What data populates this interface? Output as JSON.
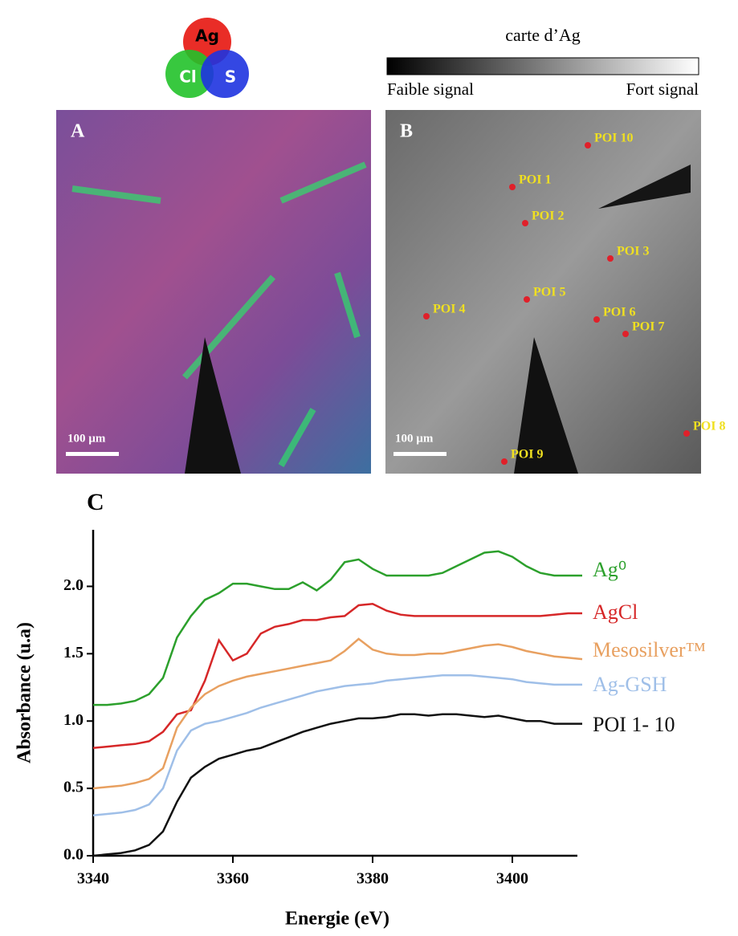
{
  "figure": {
    "rgb_legend": [
      "Ag",
      "Cl",
      "S"
    ],
    "map_title": "carte d’Ag",
    "scale_low": "Faible signal",
    "scale_high": "Fort signal",
    "panel_a": "A",
    "panel_b": "B",
    "scalebar_a": "100 µm",
    "scalebar_b": "100 µm",
    "poi": [
      "POI 1",
      "POI 2",
      "POI 3",
      "POI 4",
      "POI 5",
      "POI 6",
      "POI 7",
      "POI 8",
      "POI 9",
      "POI 10"
    ]
  },
  "chart_data": {
    "type": "line",
    "panel": "C",
    "x_label": "Energie (eV)",
    "y_label": "Absorbance (u.a)",
    "xlim": [
      3340,
      3410
    ],
    "ylim": [
      0,
      2.42
    ],
    "xticks": [
      3340,
      3360,
      3380,
      3400
    ],
    "yticks": [
      {
        "value": 0,
        "label": "0.0"
      },
      0.5,
      {
        "value": 1,
        "label": "1.0"
      },
      1.5,
      {
        "value": 2,
        "label": "2.0"
      }
    ],
    "x": [
      3340,
      3342,
      3344,
      3346,
      3348,
      3350,
      3352,
      3354,
      3356,
      3358,
      3360,
      3362,
      3364,
      3366,
      3368,
      3370,
      3372,
      3374,
      3376,
      3378,
      3380,
      3382,
      3384,
      3386,
      3388,
      3390,
      3392,
      3394,
      3396,
      3398,
      3400,
      3402,
      3404,
      3406,
      3408,
      3410
    ],
    "series": [
      {
        "name": "Ag⁰",
        "color": "#2ca02c",
        "values": [
          1.12,
          1.12,
          1.13,
          1.15,
          1.2,
          1.32,
          1.62,
          1.78,
          1.9,
          1.95,
          2.02,
          2.02,
          2.0,
          1.98,
          1.98,
          2.03,
          1.97,
          2.05,
          2.18,
          2.2,
          2.13,
          2.08,
          2.08,
          2.08,
          2.08,
          2.1,
          2.15,
          2.2,
          2.25,
          2.26,
          2.22,
          2.15,
          2.1,
          2.08,
          2.08,
          2.08
        ]
      },
      {
        "name": "AgCl",
        "color": "#d62728",
        "values": [
          0.8,
          0.81,
          0.82,
          0.83,
          0.85,
          0.92,
          1.05,
          1.08,
          1.3,
          1.6,
          1.45,
          1.5,
          1.65,
          1.7,
          1.72,
          1.75,
          1.75,
          1.77,
          1.78,
          1.86,
          1.87,
          1.82,
          1.79,
          1.78,
          1.78,
          1.78,
          1.78,
          1.78,
          1.78,
          1.78,
          1.78,
          1.78,
          1.78,
          1.79,
          1.8,
          1.8
        ]
      },
      {
        "name": "Mesosilver™",
        "color": "#e8a060",
        "values": [
          0.5,
          0.51,
          0.52,
          0.54,
          0.57,
          0.65,
          0.95,
          1.1,
          1.2,
          1.26,
          1.3,
          1.33,
          1.35,
          1.37,
          1.39,
          1.41,
          1.43,
          1.45,
          1.52,
          1.61,
          1.53,
          1.5,
          1.49,
          1.49,
          1.5,
          1.5,
          1.52,
          1.54,
          1.56,
          1.57,
          1.55,
          1.52,
          1.5,
          1.48,
          1.47,
          1.46
        ]
      },
      {
        "name": "Ag-GSH",
        "color": "#9fbfe8",
        "values": [
          0.3,
          0.31,
          0.32,
          0.34,
          0.38,
          0.5,
          0.78,
          0.93,
          0.98,
          1.0,
          1.03,
          1.06,
          1.1,
          1.13,
          1.16,
          1.19,
          1.22,
          1.24,
          1.26,
          1.27,
          1.28,
          1.3,
          1.31,
          1.32,
          1.33,
          1.34,
          1.34,
          1.34,
          1.33,
          1.32,
          1.31,
          1.29,
          1.28,
          1.27,
          1.27,
          1.27
        ]
      },
      {
        "name": "POI 1- 10",
        "color": "#111111",
        "values": [
          0,
          0.01,
          0.02,
          0.04,
          0.08,
          0.18,
          0.4,
          0.58,
          0.66,
          0.72,
          0.75,
          0.78,
          0.8,
          0.84,
          0.88,
          0.92,
          0.95,
          0.98,
          1.0,
          1.02,
          1.02,
          1.03,
          1.05,
          1.05,
          1.04,
          1.05,
          1.05,
          1.04,
          1.03,
          1.04,
          1.02,
          1.0,
          1.0,
          0.98,
          0.98,
          0.98
        ]
      }
    ]
  }
}
